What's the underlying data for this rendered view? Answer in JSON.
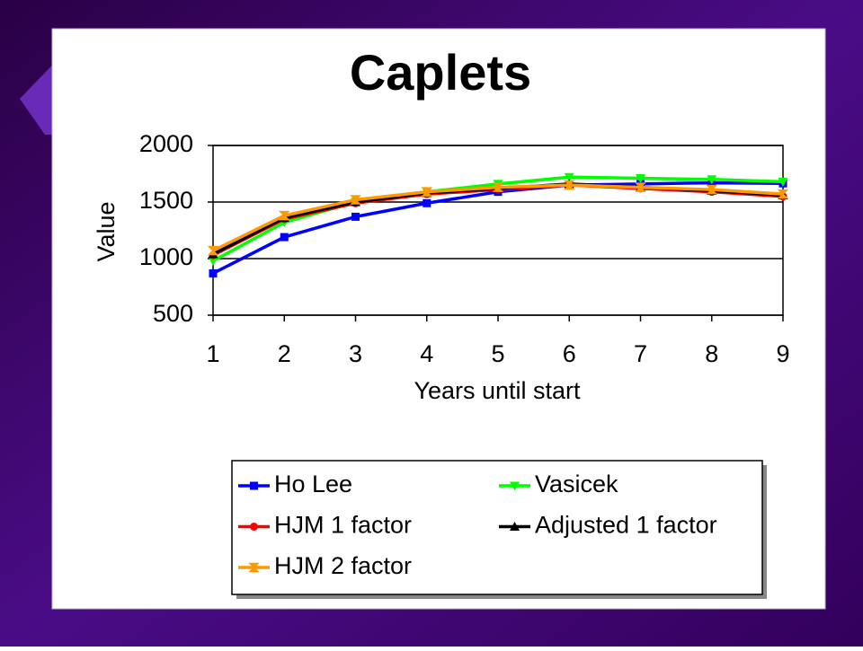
{
  "chart_data": {
    "type": "line",
    "title": "Caplets",
    "x_label": "Years until start",
    "y_label": "Value",
    "x": [
      1,
      2,
      3,
      4,
      5,
      6,
      7,
      8,
      9
    ],
    "xlim": [
      1,
      9
    ],
    "xticks": [
      1,
      2,
      3,
      4,
      5,
      6,
      7,
      8,
      9
    ],
    "ylim": [
      500,
      2000
    ],
    "yticks": [
      500,
      1000,
      1500,
      2000
    ],
    "grid": true,
    "series": [
      {
        "name": "Ho Lee",
        "color": "#0000ff",
        "marker": "square",
        "values": [
          870,
          1190,
          1370,
          1490,
          1590,
          1650,
          1660,
          1670,
          1665
        ]
      },
      {
        "name": "Vasicek",
        "color": "#00ff00",
        "marker": "triangle-down",
        "values": [
          980,
          1320,
          1500,
          1590,
          1660,
          1720,
          1710,
          1700,
          1680
        ]
      },
      {
        "name": "HJM 1 factor",
        "color": "#ff0000",
        "marker": "circle",
        "values": [
          1030,
          1350,
          1490,
          1570,
          1610,
          1650,
          1620,
          1590,
          1550
        ]
      },
      {
        "name": "Adjusted 1 factor",
        "color": "#000000",
        "marker": "triangle-up",
        "values": [
          1040,
          1360,
          1500,
          1580,
          1620,
          1660,
          1630,
          1600,
          1560
        ]
      },
      {
        "name": "HJM 2 factor",
        "color": "#ff9900",
        "marker": "cross",
        "values": [
          1070,
          1380,
          1520,
          1590,
          1630,
          1650,
          1630,
          1610,
          1570
        ]
      }
    ]
  }
}
